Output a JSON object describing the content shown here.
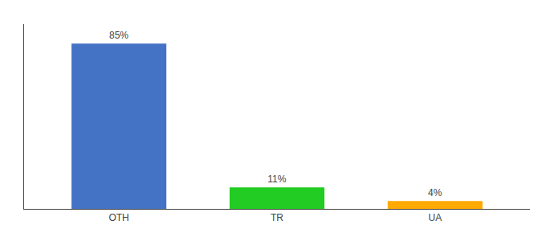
{
  "chart_data": {
    "type": "bar",
    "categories": [
      "OTH",
      "TR",
      "UA"
    ],
    "values": [
      85,
      11,
      4
    ],
    "value_labels": [
      "85%",
      "11%",
      "4%"
    ],
    "colors": [
      "#4472c4",
      "#22cc22",
      "#ffaa00"
    ],
    "ylim": [
      0,
      95
    ],
    "grid": false,
    "data_labels": true,
    "tick_labels": "x"
  }
}
